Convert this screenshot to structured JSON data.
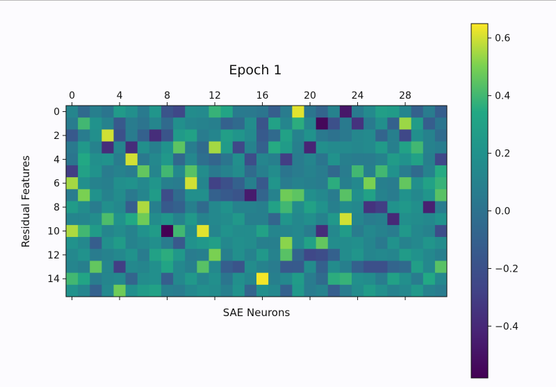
{
  "chart_data": {
    "type": "heatmap",
    "title": "Epoch 1",
    "xlabel": "SAE Neurons",
    "ylabel": "Residual Features",
    "colormap": "viridis",
    "x_ticks": [
      0,
      4,
      8,
      12,
      16,
      20,
      24,
      28
    ],
    "y_ticks": [
      0,
      2,
      4,
      6,
      8,
      10,
      12,
      14
    ],
    "n_cols": 32,
    "n_rows": 16,
    "vmin": -0.58,
    "vmax": 0.65,
    "colorbar_ticks": [
      0.6,
      0.4,
      0.2,
      0.0,
      -0.2,
      -0.4
    ],
    "colorbar_tick_labels": [
      "0.6",
      "0.4",
      "0.2",
      "0.0",
      "−0.2",
      "−0.4"
    ],
    "values": [
      [
        0.12,
        -0.05,
        0.08,
        0.02,
        0.25,
        0.18,
        0.05,
        0.22,
        -0.18,
        -0.25,
        0.16,
        0.15,
        0.38,
        0.32,
        0.05,
        0.04,
        0.02,
        -0.12,
        0.06,
        0.62,
        0.02,
        -0.08,
        0.1,
        -0.48,
        0.05,
        0.15,
        0.28,
        0.26,
        0.12,
        -0.1,
        0.06,
        -0.12
      ],
      [
        0.06,
        0.4,
        0.2,
        0.1,
        -0.15,
        0.06,
        0.01,
        0.12,
        -0.05,
        0.18,
        0.12,
        0.1,
        0.08,
        -0.1,
        -0.05,
        0.16,
        -0.18,
        0.3,
        0.12,
        0.36,
        0.12,
        -0.55,
        -0.2,
        0.05,
        -0.35,
        0.05,
        0.18,
        -0.1,
        0.54,
        0.26,
        -0.12,
        0.02
      ],
      [
        -0.15,
        0.06,
        0.18,
        0.6,
        -0.2,
        0.06,
        -0.1,
        -0.38,
        -0.18,
        0.25,
        0.3,
        0.06,
        0.12,
        0.28,
        0.22,
        0.15,
        -0.14,
        -0.05,
        0.3,
        0.1,
        0.2,
        0.04,
        0.0,
        0.04,
        0.13,
        0.15,
        -0.08,
        0.08,
        -0.25,
        0.18,
        0.1,
        -0.04
      ],
      [
        0.04,
        0.24,
        0.1,
        -0.38,
        0.12,
        -0.38,
        0.18,
        0.08,
        0.2,
        0.45,
        0.07,
        -0.05,
        0.55,
        0.25,
        -0.25,
        0.1,
        -0.1,
        0.35,
        0.26,
        0.08,
        -0.42,
        0.18,
        0.15,
        0.15,
        0.13,
        0.15,
        0.25,
        0.08,
        0.3,
        0.4,
        0.1,
        0.07
      ],
      [
        0.02,
        0.34,
        0.18,
        0.2,
        0.06,
        0.6,
        0.04,
        0.14,
        0.24,
        -0.06,
        0.13,
        -0.02,
        -0.08,
        0.02,
        0.18,
        -0.22,
        0.12,
        0.08,
        -0.3,
        0.06,
        0.12,
        0.02,
        0.2,
        0.08,
        0.06,
        0.06,
        0.1,
        0.26,
        0.2,
        0.3,
        0.08,
        -0.25
      ],
      [
        -0.3,
        0.3,
        0.2,
        0.06,
        0.1,
        0.06,
        0.46,
        0.12,
        0.4,
        0.14,
        0.44,
        0.16,
        0.04,
        0.1,
        0.16,
        -0.04,
        0.08,
        0.16,
        0.02,
        0.06,
        0.1,
        0.06,
        -0.06,
        0.06,
        0.4,
        0.08,
        0.4,
        0.2,
        0.06,
        -0.05,
        0.1,
        0.35
      ],
      [
        0.55,
        0.18,
        0.1,
        0.08,
        0.18,
        0.2,
        0.14,
        0.22,
        0.08,
        0.06,
        0.6,
        0.12,
        -0.28,
        -0.2,
        -0.1,
        0.08,
        -0.15,
        0.22,
        0.06,
        0.1,
        0.08,
        0.06,
        0.36,
        0.08,
        0.14,
        0.5,
        0.08,
        0.06,
        0.46,
        0.18,
        0.3,
        0.38
      ],
      [
        0.06,
        0.5,
        0.2,
        0.1,
        0.16,
        0.04,
        0.12,
        0.26,
        -0.22,
        -0.04,
        0.18,
        0.18,
        -0.1,
        -0.14,
        -0.18,
        -0.46,
        -0.08,
        0.1,
        0.48,
        0.45,
        0.18,
        0.14,
        0.06,
        0.44,
        0.18,
        0.3,
        0.1,
        0.06,
        0.2,
        0.14,
        0.22,
        0.44
      ],
      [
        0.26,
        0.16,
        0.06,
        0.18,
        0.14,
        -0.12,
        0.56,
        0.08,
        -0.14,
        -0.1,
        0.08,
        -0.05,
        0.14,
        0.2,
        0.1,
        0.1,
        0.08,
        0.3,
        0.4,
        0.16,
        0.3,
        0.2,
        0.08,
        0.16,
        0.14,
        -0.35,
        -0.3,
        0.2,
        0.24,
        0.18,
        -0.44,
        0.06
      ],
      [
        0.12,
        0.12,
        0.16,
        0.42,
        0.2,
        0.34,
        0.48,
        0.16,
        0.22,
        0.1,
        0.24,
        0.1,
        0.14,
        0.16,
        0.24,
        0.08,
        0.08,
        -0.08,
        0.22,
        0.14,
        0.18,
        0.1,
        0.24,
        0.6,
        0.12,
        0.06,
        0.08,
        -0.4,
        0.18,
        0.16,
        0.14,
        0.2
      ],
      [
        0.56,
        0.4,
        0.26,
        0.12,
        0.16,
        0.1,
        0.2,
        0.26,
        -0.58,
        0.4,
        0.16,
        0.62,
        0.12,
        0.2,
        0.16,
        0.16,
        0.3,
        0.12,
        0.12,
        0.14,
        0.06,
        -0.38,
        0.14,
        0.26,
        0.06,
        0.14,
        0.1,
        0.06,
        0.24,
        0.14,
        0.1,
        -0.22
      ],
      [
        0.2,
        0.14,
        -0.12,
        0.18,
        0.26,
        0.1,
        0.14,
        0.18,
        0.06,
        -0.15,
        0.2,
        0.24,
        0.28,
        0.14,
        0.18,
        0.16,
        0.08,
        0.08,
        0.52,
        0.14,
        0.3,
        0.46,
        0.16,
        0.16,
        0.18,
        0.12,
        0.04,
        0.2,
        0.1,
        0.14,
        0.22,
        0.16
      ],
      [
        0.14,
        0.2,
        0.06,
        0.1,
        0.14,
        0.2,
        0.06,
        0.3,
        0.36,
        0.24,
        0.06,
        0.08,
        0.5,
        0.08,
        0.18,
        0.1,
        0.24,
        0.1,
        0.44,
        -0.08,
        -0.25,
        -0.22,
        -0.1,
        0.16,
        0.22,
        0.12,
        0.14,
        0.12,
        0.26,
        0.2,
        0.14,
        0.08
      ],
      [
        0.12,
        0.08,
        0.46,
        0.12,
        -0.3,
        0.14,
        0.12,
        0.18,
        0.32,
        0.14,
        0.08,
        0.44,
        0.14,
        -0.12,
        -0.18,
        0.16,
        0.1,
        0.06,
        -0.15,
        -0.14,
        0.16,
        -0.1,
        0.16,
        0.08,
        -0.1,
        -0.2,
        -0.2,
        -0.08,
        -0.05,
        0.28,
        0.14,
        0.44
      ],
      [
        0.4,
        0.32,
        0.06,
        0.12,
        0.14,
        -0.08,
        0.16,
        0.18,
        -0.12,
        0.14,
        0.24,
        0.12,
        0.18,
        0.02,
        0.18,
        0.12,
        0.64,
        0.08,
        0.14,
        0.26,
        0.06,
        -0.04,
        0.36,
        0.38,
        0.18,
        0.16,
        0.06,
        0.3,
        0.18,
        0.06,
        0.34,
        0.14
      ],
      [
        0.2,
        0.12,
        -0.1,
        0.14,
        0.48,
        0.18,
        0.26,
        0.3,
        0.08,
        0.06,
        0.14,
        0.18,
        0.16,
        0.08,
        0.2,
        -0.08,
        0.18,
        0.14,
        -0.1,
        0.24,
        0.06,
        0.1,
        -0.12,
        0.06,
        0.16,
        0.26,
        0.18,
        0.1,
        0.14,
        0.24,
        0.1,
        0.06
      ]
    ]
  }
}
